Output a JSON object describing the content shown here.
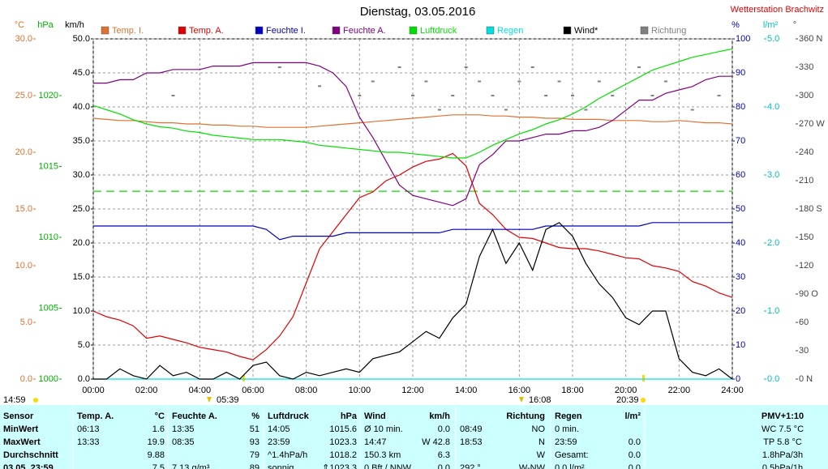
{
  "chart_data": {
    "type": "line",
    "title": "Dienstag, 03.05.2016",
    "subtitle": "Wetterstation Brachwitz",
    "x": [
      0,
      0.5,
      1,
      1.5,
      2,
      2.5,
      3,
      3.5,
      4,
      4.5,
      5,
      5.5,
      6,
      6.5,
      7,
      7.5,
      8,
      8.5,
      9,
      9.5,
      10,
      10.5,
      11,
      11.5,
      12,
      12.5,
      13,
      13.5,
      14,
      14.5,
      15,
      15.5,
      16,
      16.5,
      17,
      17.5,
      18,
      18.5,
      19,
      19.5,
      20,
      20.5,
      21,
      21.5,
      22,
      22.5,
      23,
      23.5,
      24
    ],
    "xlim": [
      0,
      24
    ],
    "xticks": [
      {
        "value": 0,
        "label": "00:00"
      },
      {
        "value": 2,
        "label": "02:00"
      },
      {
        "value": 4,
        "label": "04:00"
      },
      {
        "value": 6,
        "label": "06:00"
      },
      {
        "value": 8,
        "label": "08:00"
      },
      {
        "value": 10,
        "label": "10:00"
      },
      {
        "value": 12,
        "label": "12:00"
      },
      {
        "value": 14,
        "label": "14:00"
      },
      {
        "value": 16,
        "label": "16:00"
      },
      {
        "value": 18,
        "label": "18:00"
      },
      {
        "value": 20,
        "label": "20:00"
      },
      {
        "value": 22,
        "label": "22:00"
      },
      {
        "value": 24,
        "label": "24:00"
      }
    ],
    "grid": true,
    "axes": {
      "temp": {
        "label": "°C",
        "color": "#e07030",
        "ylim": [
          0,
          30
        ],
        "yticks": [
          {
            "value": 0,
            "label": "0.0"
          },
          {
            "value": 5,
            "label": "5.0"
          },
          {
            "value": 10,
            "label": "10.0"
          },
          {
            "value": 15,
            "label": "15.0"
          },
          {
            "value": 20,
            "label": "20.0"
          },
          {
            "value": 25,
            "label": "25.0"
          },
          {
            "value": 30,
            "label": "30.0"
          }
        ]
      },
      "pressure": {
        "label": "hPa",
        "color": "#00b000",
        "ylim": [
          1000,
          1024
        ],
        "yticks": [
          1000,
          1005,
          1010,
          1015,
          1020
        ]
      },
      "wind": {
        "label": "km/h",
        "color": "#000000",
        "ylim": [
          0,
          50
        ],
        "yticks": [
          {
            "value": 0,
            "label": "0.0"
          },
          {
            "value": 5,
            "label": "5.0"
          },
          {
            "value": 10,
            "label": "10.0"
          },
          {
            "value": 15,
            "label": "15.0"
          },
          {
            "value": 20,
            "label": "20.0"
          },
          {
            "value": 25,
            "label": "25.0"
          },
          {
            "value": 30,
            "label": "30.0"
          },
          {
            "value": 35,
            "label": "35.0"
          },
          {
            "value": 40,
            "label": "40.0"
          },
          {
            "value": 45,
            "label": "45.0"
          },
          {
            "value": 50,
            "label": "50.0"
          }
        ]
      },
      "humidity": {
        "label": "%",
        "color": "#0000c0",
        "ylim": [
          0,
          100
        ],
        "yticks": [
          0,
          10,
          20,
          30,
          40,
          50,
          60,
          70,
          80,
          90,
          100
        ]
      },
      "rain": {
        "label": "l/m²",
        "color": "#00c0c0",
        "ylim": [
          0,
          5
        ],
        "yticks": [
          {
            "value": 0,
            "label": "0.0"
          },
          {
            "value": 1,
            "label": "1.0"
          },
          {
            "value": 2,
            "label": "2.0"
          },
          {
            "value": 3,
            "label": "3.0"
          },
          {
            "value": 4,
            "label": "4.0"
          },
          {
            "value": 5,
            "label": "5.0"
          }
        ]
      },
      "direction": {
        "label": "°",
        "color": "#444444",
        "ylim": [
          0,
          360
        ],
        "yticks": [
          {
            "value": 0,
            "label": "0 N"
          },
          30,
          60,
          {
            "value": 90,
            "label": "90 O"
          },
          120,
          150,
          {
            "value": 180,
            "label": "180 S"
          },
          210,
          240,
          {
            "value": 270,
            "label": "270 W"
          },
          300,
          330,
          {
            "value": 360,
            "label": "360 N"
          }
        ]
      }
    },
    "reference_line": {
      "axis": "pressure",
      "value": 1013.25,
      "color": "#00e000"
    },
    "series": [
      {
        "name": "Temp. I.",
        "color": "#e07030",
        "axis": "temp",
        "values": [
          23.0,
          22.9,
          22.8,
          22.8,
          22.7,
          22.6,
          22.6,
          22.5,
          22.5,
          22.4,
          22.4,
          22.3,
          22.3,
          22.2,
          22.2,
          22.2,
          22.2,
          22.3,
          22.4,
          22.5,
          22.6,
          22.7,
          22.8,
          22.9,
          23.0,
          23.1,
          23.2,
          23.3,
          23.3,
          23.3,
          23.2,
          23.2,
          23.1,
          23.1,
          23.0,
          23.0,
          22.9,
          22.9,
          22.9,
          22.8,
          22.8,
          22.8,
          22.7,
          22.7,
          22.8,
          22.7,
          22.6,
          22.6,
          22.5
        ]
      },
      {
        "name": "Temp. A.",
        "color": "#e00000",
        "axis": "temp",
        "values": [
          6.0,
          5.5,
          5.2,
          4.7,
          3.6,
          3.8,
          3.5,
          3.2,
          2.8,
          2.6,
          2.4,
          2.0,
          1.7,
          2.6,
          3.8,
          5.5,
          8.5,
          11.5,
          13.0,
          14.5,
          16.0,
          16.5,
          17.5,
          18.0,
          18.7,
          19.2,
          19.4,
          19.9,
          18.8,
          15.5,
          14.5,
          13.2,
          12.5,
          12.4,
          12.0,
          11.6,
          11.5,
          11.5,
          11.3,
          11.0,
          10.7,
          10.6,
          10.0,
          9.8,
          9.5,
          8.6,
          8.2,
          7.6,
          7.2
        ]
      },
      {
        "name": "Feuchte I.",
        "color": "#0000c0",
        "axis": "humidity",
        "values": [
          45,
          45,
          45,
          45,
          45,
          45,
          45,
          45,
          45,
          45,
          45,
          45,
          45,
          44,
          41,
          42,
          42,
          42,
          42,
          43,
          43,
          43,
          43,
          43,
          43,
          43,
          43,
          44,
          44,
          44,
          44,
          44,
          44,
          44,
          45,
          45,
          45,
          45,
          45,
          45,
          45,
          45,
          46,
          46,
          46,
          46,
          46,
          46,
          46
        ]
      },
      {
        "name": "Feuchte A.",
        "color": "#800080",
        "axis": "humidity",
        "values": [
          87,
          87,
          88,
          88,
          90,
          90,
          91,
          91,
          91,
          92,
          92,
          92,
          93,
          93,
          93,
          93,
          93,
          92,
          90,
          86,
          77,
          71,
          64,
          57,
          54,
          53,
          52,
          51,
          53,
          63,
          66,
          70,
          70,
          71,
          72,
          72,
          73,
          73,
          74,
          76,
          79,
          82,
          82,
          84,
          85,
          86,
          88,
          89,
          89
        ]
      },
      {
        "name": "Luftdruck",
        "color": "#00e000",
        "axis": "pressure",
        "values": [
          1019.3,
          1019.0,
          1018.7,
          1018.3,
          1018.0,
          1017.8,
          1017.7,
          1017.5,
          1017.4,
          1017.2,
          1017.1,
          1017.0,
          1016.9,
          1016.9,
          1016.9,
          1016.8,
          1016.7,
          1016.5,
          1016.4,
          1016.3,
          1016.2,
          1016.1,
          1016.0,
          1016.0,
          1015.9,
          1015.8,
          1015.7,
          1015.6,
          1015.6,
          1016.0,
          1016.5,
          1016.9,
          1017.3,
          1017.6,
          1018.0,
          1018.3,
          1018.7,
          1019.2,
          1019.8,
          1020.3,
          1020.8,
          1021.3,
          1021.8,
          1022.1,
          1022.4,
          1022.7,
          1022.9,
          1023.1,
          1023.3
        ]
      },
      {
        "name": "Regen",
        "color": "#00e0e0",
        "axis": "rain",
        "values": [
          0,
          0,
          0,
          0,
          0,
          0,
          0,
          0,
          0,
          0,
          0,
          0,
          0,
          0,
          0,
          0,
          0,
          0,
          0,
          0,
          0,
          0,
          0,
          0,
          0,
          0,
          0,
          0,
          0,
          0,
          0,
          0,
          0,
          0,
          0,
          0,
          0,
          0,
          0,
          0,
          0,
          0,
          0,
          0,
          0,
          0,
          0,
          0,
          0
        ]
      },
      {
        "name": "Wind*",
        "color": "#000000",
        "axis": "wind",
        "values": [
          0,
          0,
          1.5,
          0.5,
          0,
          2,
          0.5,
          1,
          0,
          0,
          1,
          0,
          2,
          2.5,
          0.5,
          0,
          1,
          0.5,
          1,
          1.5,
          1,
          3,
          3.5,
          4,
          5.5,
          7,
          6,
          9,
          11,
          18,
          22,
          17,
          20,
          16,
          22,
          23,
          21,
          17,
          14,
          12,
          9,
          8,
          10,
          10,
          3,
          1,
          0.5,
          1.5,
          0
        ]
      },
      {
        "name": "Richtung",
        "color": "#808080",
        "axis": "direction",
        "style": "dots",
        "values": [
          null,
          null,
          null,
          null,
          null,
          null,
          300,
          null,
          null,
          null,
          null,
          null,
          null,
          null,
          330,
          null,
          null,
          310,
          null,
          null,
          300,
          315,
          null,
          330,
          300,
          315,
          285,
          300,
          330,
          315,
          300,
          285,
          315,
          330,
          300,
          315,
          300,
          285,
          315,
          300,
          null,
          330,
          300,
          315,
          null,
          285,
          null,
          300,
          null
        ]
      }
    ],
    "annotations": [
      "14:59",
      "05:39",
      "16:08",
      "20:39"
    ]
  },
  "table": {
    "columns": [
      [
        "Sensor"
      ],
      [
        "Temp. A.",
        "°C"
      ],
      [
        "Feuchte A.",
        "%"
      ],
      [
        "Luftdruck",
        "hPa"
      ],
      [
        "Wind",
        "km/h"
      ],
      [
        "Richtung"
      ],
      [
        "Regen",
        "l/m²"
      ],
      [
        "PMV+1:10"
      ]
    ],
    "rows": [
      [
        [
          "MinWert"
        ],
        [
          "06:13",
          "1.6"
        ],
        [
          "13:35",
          "51"
        ],
        [
          "14:05",
          "1015.6"
        ],
        [
          "Ø 10 min.",
          "0.0"
        ],
        [
          "08:49",
          "NO"
        ],
        [
          "0 min."
        ],
        [
          "WC 7.5 °C"
        ]
      ],
      [
        [
          "MaxWert"
        ],
        [
          "13:33",
          "19.9"
        ],
        [
          "08:35",
          "93"
        ],
        [
          "23:59",
          "1023.3"
        ],
        [
          "14:47",
          "W 42.8"
        ],
        [
          "18:53",
          "N"
        ],
        [
          "23:59",
          "0.0"
        ],
        [
          "TP 5.8 °C"
        ]
      ],
      [
        [
          "Durchschnitt"
        ],
        [
          "9.88"
        ],
        [
          "79"
        ],
        [
          "^1.4hPa/h",
          "1018.2"
        ],
        [
          "150.3 km",
          "6.3"
        ],
        [
          "W"
        ],
        [
          "Gesamt:",
          "0.0"
        ],
        [
          "1.8hPa/3h"
        ]
      ],
      [
        [
          "03.05. 23:59"
        ],
        [
          "7.5"
        ],
        [
          "7.13 g/m³",
          "89"
        ],
        [
          "sonnig",
          "⇑1023.3"
        ],
        [
          "0 Bft / NNW",
          "0.0"
        ],
        [
          "292 °",
          "W-NW"
        ],
        [
          "0.0 l/m²",
          "0.0"
        ],
        [
          "0.5hPa/1h"
        ]
      ]
    ]
  }
}
